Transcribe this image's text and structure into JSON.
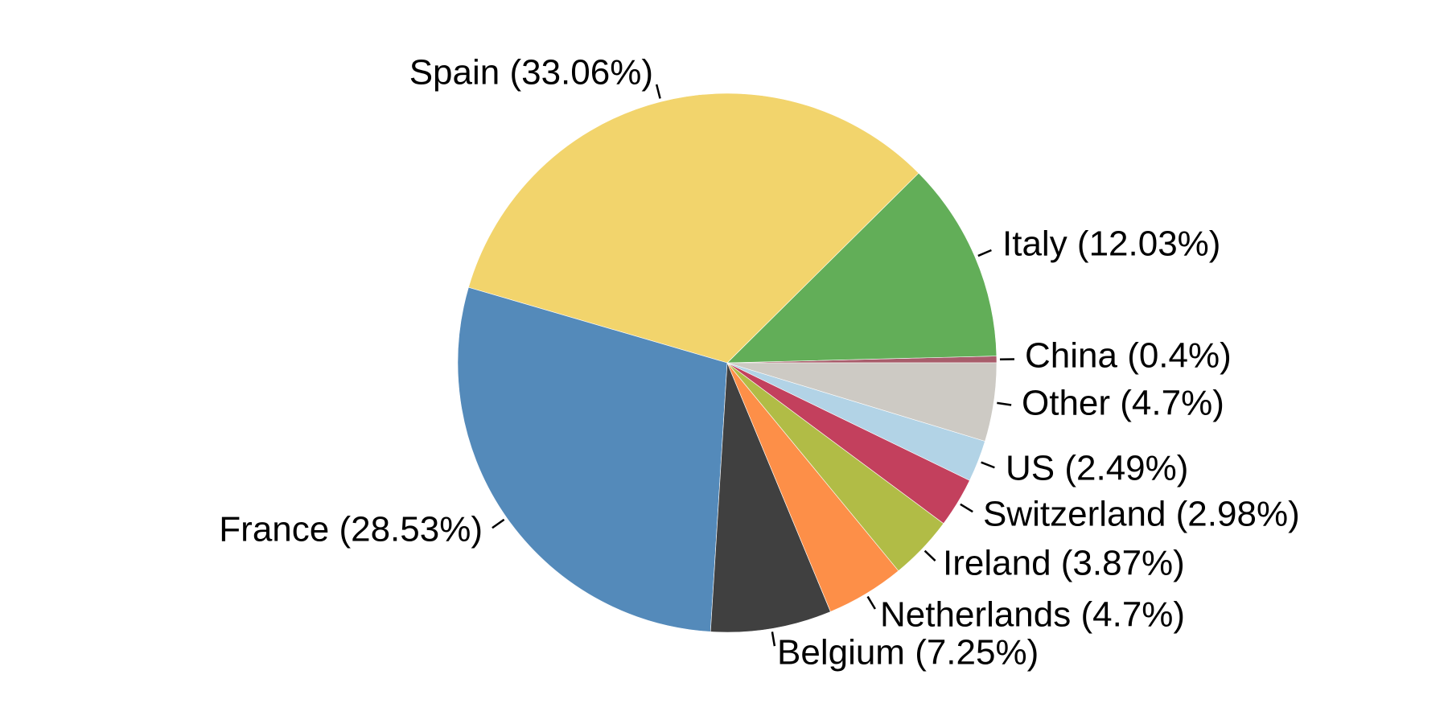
{
  "chart_data": {
    "type": "pie",
    "title": "",
    "start_angle_deg": 0,
    "direction": "counterclockwise",
    "slices": [
      {
        "label": "China (0.4%)",
        "name": "China",
        "value": 0.4,
        "color": "#a85d6b"
      },
      {
        "label": "Italy (12.03%)",
        "name": "Italy",
        "value": 12.03,
        "color": "#62ae58"
      },
      {
        "label": "Spain (33.06%)",
        "name": "Spain",
        "value": 33.06,
        "color": "#f2d46c"
      },
      {
        "label": "France (28.53%)",
        "name": "France",
        "value": 28.53,
        "color": "#548aba"
      },
      {
        "label": "Belgium (7.25%)",
        "name": "Belgium",
        "value": 7.25,
        "color": "#404040"
      },
      {
        "label": "Netherlands (4.7%)",
        "name": "Netherlands",
        "value": 4.7,
        "color": "#fd8f48"
      },
      {
        "label": "Ireland (3.87%)",
        "name": "Ireland",
        "value": 3.87,
        "color": "#b1bc46"
      },
      {
        "label": "Switzerland (2.98%)",
        "name": "Switzerland",
        "value": 2.98,
        "color": "#c3405d"
      },
      {
        "label": "US (2.49%)",
        "name": "US",
        "value": 2.49,
        "color": "#b2d3e6"
      },
      {
        "label": "Other (4.7%)",
        "name": "Other",
        "value": 4.7,
        "color": "#cdcac4"
      }
    ]
  }
}
